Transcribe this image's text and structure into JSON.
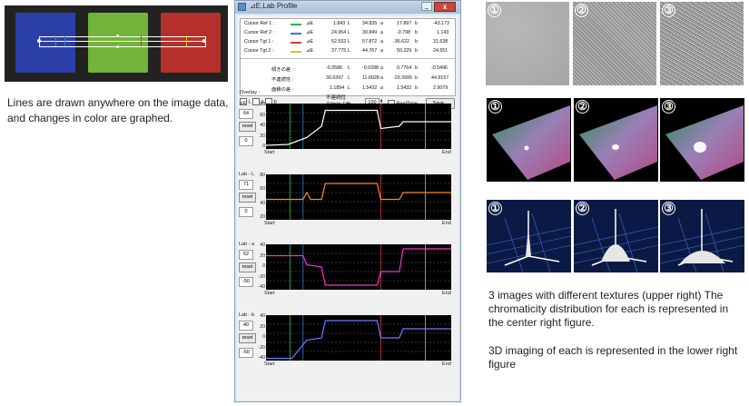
{
  "left_caption": "Lines are drawn anywhere on the image data, and changes in color are graphed.",
  "window": {
    "title": "⊿E,Lab Profile",
    "minimize_label": "_",
    "close_label": "x",
    "table": {
      "rows": [
        {
          "name": "Cursor Ref 1 :",
          "color": "#2db84a",
          "de_label": "⊿E",
          "de": "1.843",
          "l_label": "L",
          "l": "34.835",
          "a_label": "a",
          "a": "17.897",
          "b_label": "b",
          "b": "-43.173"
        },
        {
          "name": "Cursor Ref 2 :",
          "color": "#2f7fd6",
          "de_label": "⊿E",
          "de": "24.954",
          "l_label": "L",
          "l": "30.849",
          "a_label": "a",
          "a": "-0.798",
          "b_label": "b",
          "b": "1.143"
        },
        {
          "name": "Cursor Tgt 1 :",
          "color": "#d63a3a",
          "de_label": "⊿E",
          "de": "52.532",
          "l_label": "L",
          "l": "57.872",
          "a_label": "a",
          "a": "-36.622",
          "b_label": "b",
          "b": "31.638"
        },
        {
          "name": "Cursor Tgt 2 :",
          "color": "#d9c21a",
          "de_label": "⊿E",
          "de": "37.775",
          "l_label": "L",
          "l": "44.767",
          "a_label": "a",
          "a": "50.229",
          "b_label": "b",
          "b": "24.551"
        }
      ],
      "stats": [
        {
          "name": "傾きの差 :",
          "de": "-0.3586",
          "l_label": "L",
          "l": "-0.0398",
          "a_label": "a",
          "a": "0.7764",
          "b_label": "b",
          "b": "-0.5496"
        },
        {
          "name": "不連続性 :",
          "de": "30.0397",
          "l_label": "L",
          "l": "11.6028",
          "a_label": "a",
          "a": "-29.3995",
          "b_label": "b",
          "b": "44.9157"
        },
        {
          "name": "面積の差 :",
          "de": "1.1894",
          "l_label": "L",
          "l": "1.5432",
          "a_label": "a",
          "a": "1.5432",
          "b_label": "b",
          "b": "2.9079"
        }
      ]
    },
    "overlay": {
      "label": "Overlay :",
      "opt_l": "L",
      "opt_a": "a",
      "opt_b": "b",
      "discontinuity_label_1": "不連続性",
      "discontinuity_label_2": "平均化点数 :",
      "points_value": "100",
      "realtime_label": "RealTime",
      "save_label": "Save..."
    },
    "plots": [
      {
        "label": "⊿E",
        "box_value": "64",
        "reset_label": "reset",
        "zero_value": "0",
        "ticks": [
          "80",
          "60",
          "40",
          "20",
          "0"
        ],
        "start": "Start",
        "end": "End",
        "color": "#ffffff"
      },
      {
        "label": "Lab - L",
        "box_value": "71",
        "reset_label": "reset",
        "zero_value": "0",
        "ticks": [
          "80",
          "60",
          "40",
          "20"
        ],
        "start": "Start",
        "end": "End",
        "color": "#ff8a1e"
      },
      {
        "label": "Lab - a",
        "box_value": "52",
        "reset_label": "reset",
        "zero_value": "-50",
        "ticks": [
          "40",
          "20",
          "0",
          "-20",
          "-40"
        ],
        "start": "Start",
        "end": "End",
        "color": "#ff2fd2"
      },
      {
        "label": "Lab - b",
        "box_value": "40",
        "reset_label": "reset",
        "zero_value": "-50",
        "ticks": [
          "40",
          "20",
          "0",
          "-20",
          "-40"
        ],
        "start": "Start",
        "end": "End",
        "color": "#6b7cff"
      }
    ]
  },
  "right": {
    "texture_numbers": [
      "①",
      "②",
      "③"
    ],
    "caption_1": "3 images with different textures (upper right) The chromaticity distribution for each is represented in the center right figure.",
    "caption_2": "3D imaging of each is represented in the lower right figure"
  },
  "colors": {
    "swatch_blue": "#2b3fa8",
    "swatch_green": "#72b43a",
    "swatch_red": "#b5302a"
  }
}
